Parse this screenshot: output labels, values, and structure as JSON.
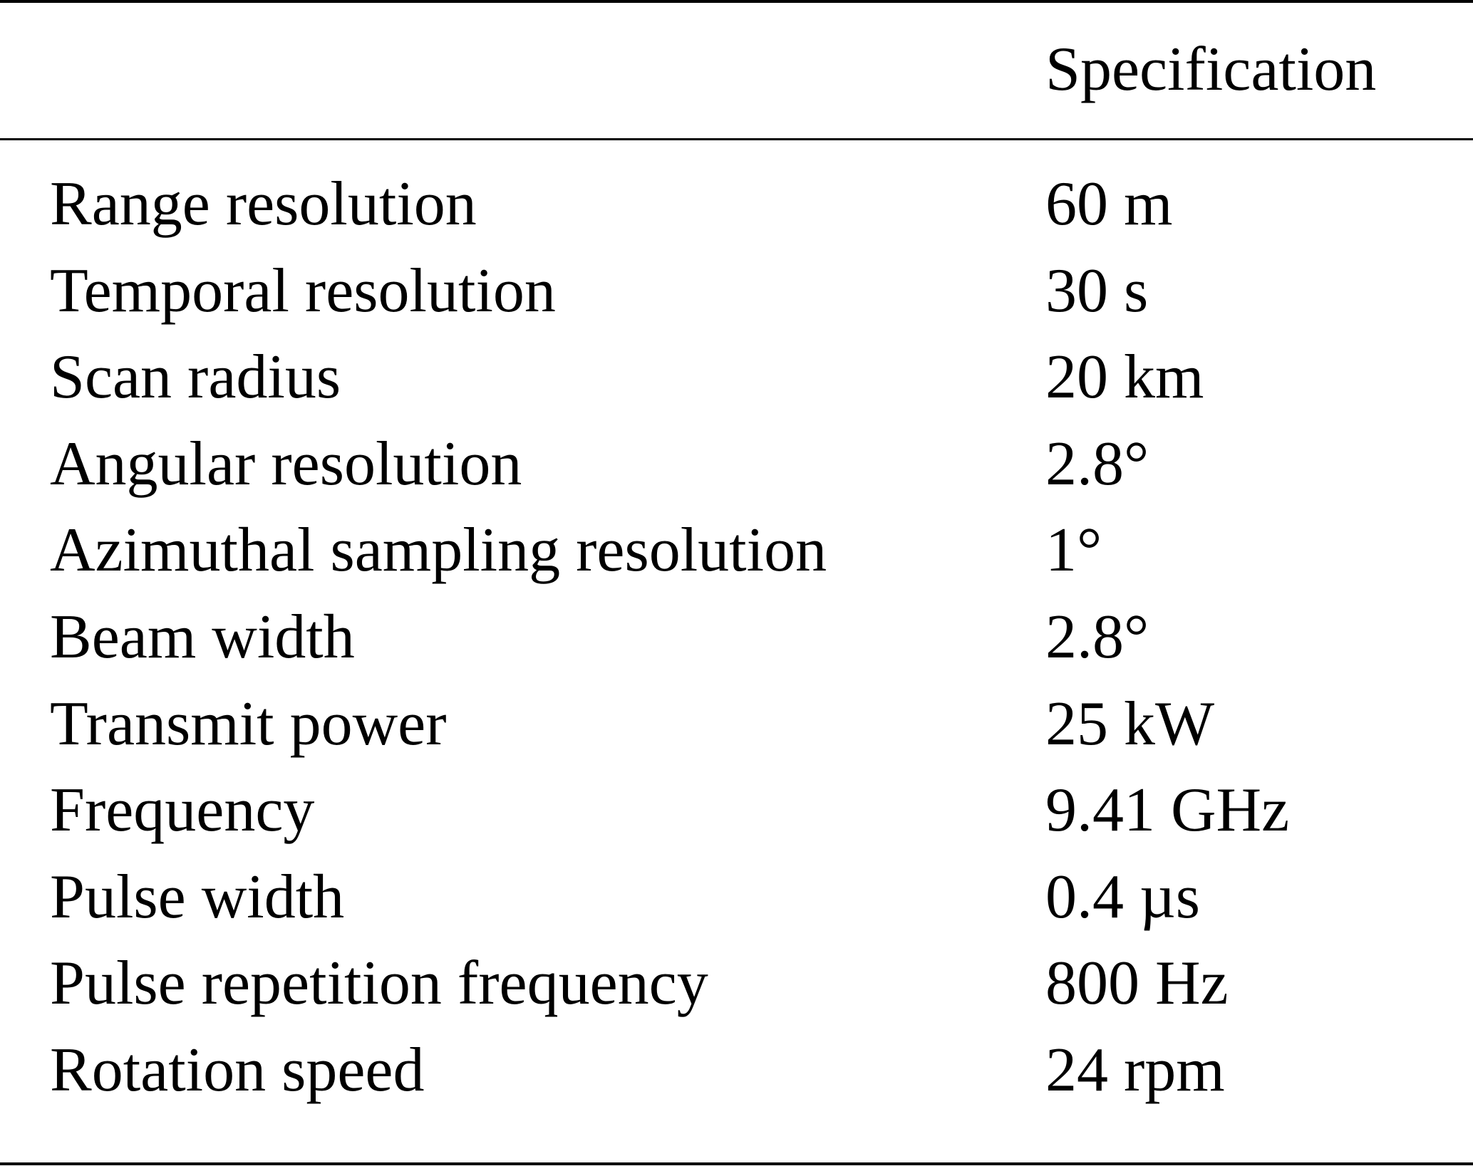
{
  "table": {
    "header": {
      "parameter": "",
      "specification": "Specification"
    },
    "rows": [
      {
        "parameter": "Range resolution",
        "value": "60 m"
      },
      {
        "parameter": "Temporal resolution",
        "value": "30 s"
      },
      {
        "parameter": "Scan radius",
        "value": "20 km"
      },
      {
        "parameter": "Angular resolution",
        "value": "2.8°"
      },
      {
        "parameter": "Azimuthal sampling resolution",
        "value": "1°"
      },
      {
        "parameter": "Beam width",
        "value": "2.8°"
      },
      {
        "parameter": "Transmit power",
        "value": "25 kW"
      },
      {
        "parameter": "Frequency",
        "value": "9.41 GHz"
      },
      {
        "parameter": "Pulse width",
        "value": "0.4 µs"
      },
      {
        "parameter": "Pulse repetition frequency",
        "value": "800 Hz"
      },
      {
        "parameter": "Rotation speed",
        "value": "24 rpm"
      }
    ]
  }
}
